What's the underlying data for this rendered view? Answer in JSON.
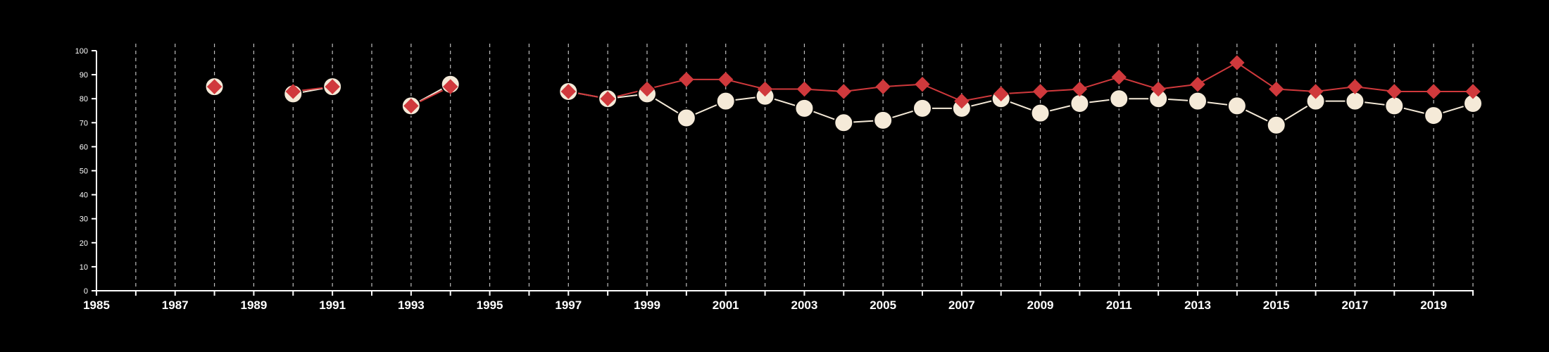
{
  "chart_data": {
    "type": "line",
    "title": "",
    "xlabel": "",
    "ylabel": "",
    "xlim": [
      1985,
      2020
    ],
    "ylim": [
      0,
      100
    ],
    "grid": "vertical dashed at every year",
    "legend": "none",
    "x_ticks": [
      "1985",
      "1987",
      "1989",
      "1991",
      "1993",
      "1995",
      "1997",
      "1999",
      "2001",
      "2003",
      "2005",
      "2007",
      "2009",
      "2011",
      "2013",
      "2015",
      "2017",
      "2019"
    ],
    "y_ticks": [
      "0",
      "10",
      "20",
      "30",
      "40",
      "50",
      "60",
      "70",
      "80",
      "90",
      "100"
    ],
    "x": [
      1985,
      1986,
      1987,
      1988,
      1989,
      1990,
      1991,
      1992,
      1993,
      1994,
      1995,
      1996,
      1997,
      1998,
      1999,
      2000,
      2001,
      2002,
      2003,
      2004,
      2005,
      2006,
      2007,
      2008,
      2009,
      2010,
      2011,
      2012,
      2013,
      2014,
      2015,
      2016,
      2017,
      2018,
      2019,
      2020
    ],
    "series": [
      {
        "marker": "circle",
        "color": "#f5ead8",
        "values": [
          null,
          null,
          null,
          85,
          null,
          82,
          85,
          null,
          77,
          86,
          null,
          null,
          83,
          80,
          82,
          72,
          79,
          81,
          76,
          70,
          71,
          76,
          76,
          80,
          74,
          78,
          80,
          80,
          79,
          77,
          69,
          79,
          79,
          77,
          73,
          78
        ]
      },
      {
        "marker": "diamond",
        "color": "#d0393c",
        "values": [
          null,
          null,
          null,
          85,
          null,
          83,
          85,
          null,
          77,
          85,
          null,
          null,
          83,
          80,
          84,
          88,
          88,
          84,
          84,
          83,
          85,
          86,
          79,
          82,
          83,
          84,
          89,
          84,
          86,
          95,
          84,
          83,
          85,
          83,
          83,
          83
        ]
      }
    ]
  }
}
